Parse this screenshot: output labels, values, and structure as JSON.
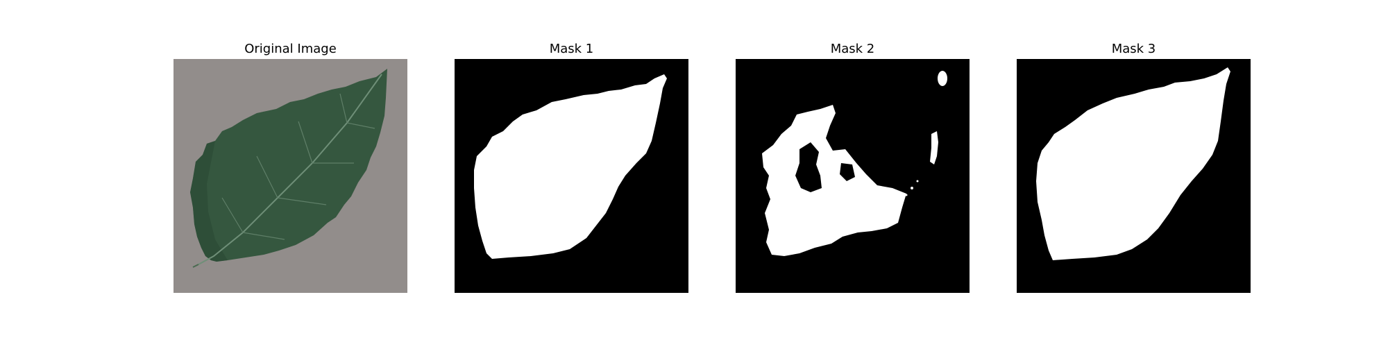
{
  "figure": {
    "panels": [
      {
        "title": "Original Image",
        "kind": "photo"
      },
      {
        "title": "Mask 1",
        "kind": "mask"
      },
      {
        "title": "Mask 2",
        "kind": "mask"
      },
      {
        "title": "Mask 3",
        "kind": "mask"
      }
    ]
  },
  "colors": {
    "background": "#ffffff",
    "photo_background": "#8f8b88",
    "leaf": "#35573f",
    "leaf_dark": "#2a4733",
    "vein": "#6f8f78",
    "mask_background": "#000000",
    "mask_foreground": "#ffffff"
  }
}
